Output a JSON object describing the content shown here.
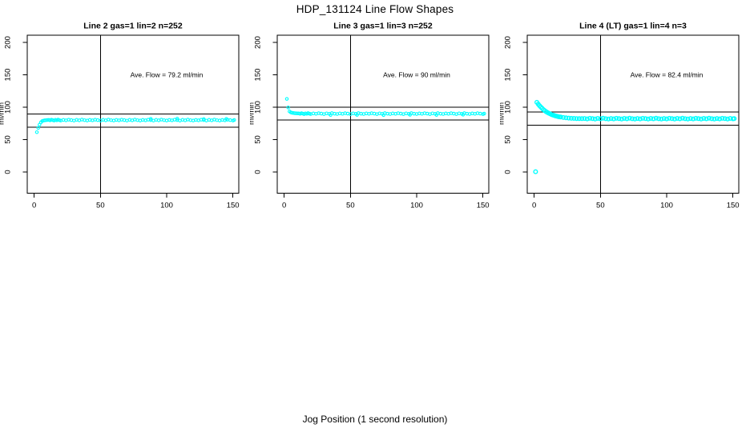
{
  "page": {
    "main_title": "HDP_131124  Line Flow Shapes",
    "x_axis_label": "Jog Position (1 second resolution)",
    "background_color": "#FFFFFF",
    "axis_color": "#000000",
    "point_color": "#00FFFF"
  },
  "chart_data": [
    {
      "type": "scatter",
      "title": "Line 2 gas=1 lin=2 n=252",
      "annotation": "Ave. Flow =  79.2  ml/min",
      "ave_flow_ml_min": 79.2,
      "n": 252,
      "ylabel": "ml/min",
      "xticks": [
        0,
        50,
        100,
        150
      ],
      "yticks": [
        0,
        50,
        100,
        150,
        200
      ],
      "xlim": [
        -5.3,
        155
      ],
      "ylim": [
        -33,
        211
      ],
      "grid": false,
      "vline_x": 50,
      "hlines": [
        89.2,
        69.2
      ],
      "marker_radius": 1.7,
      "marker_stroke": 1.1,
      "points": [
        [
          2,
          61.5
        ],
        [
          3,
          68
        ],
        [
          4,
          73
        ],
        [
          5,
          76.5
        ],
        [
          6,
          78.5
        ],
        [
          7,
          79.3
        ],
        [
          8,
          79.7
        ],
        [
          9,
          80
        ],
        [
          10,
          80.2
        ],
        [
          11,
          80.4
        ],
        [
          12,
          79.7
        ],
        [
          13,
          80.8
        ],
        [
          14,
          80.1
        ],
        [
          15,
          79.4
        ],
        [
          16,
          80.5
        ],
        [
          17,
          79.8
        ],
        [
          18,
          80.9
        ],
        [
          19,
          80
        ],
        [
          20,
          79.5
        ],
        [
          22,
          80.4
        ],
        [
          24,
          79.7
        ],
        [
          26,
          80.8
        ],
        [
          28,
          80.1
        ],
        [
          30,
          79.4
        ],
        [
          32,
          80.5
        ],
        [
          34,
          79.8
        ],
        [
          36,
          80.9
        ],
        [
          38,
          80
        ],
        [
          40,
          79.5
        ],
        [
          42,
          80.4
        ],
        [
          44,
          79.7
        ],
        [
          46,
          80.8
        ],
        [
          48,
          80.1
        ],
        [
          50,
          79.4
        ],
        [
          52,
          80.5
        ],
        [
          54,
          79.8
        ],
        [
          56,
          80.9
        ],
        [
          58,
          80
        ],
        [
          60,
          79.5
        ],
        [
          62,
          80.4
        ],
        [
          64,
          79.7
        ],
        [
          66,
          80.8
        ],
        [
          68,
          80.1
        ],
        [
          70,
          79.4
        ],
        [
          72,
          80.5
        ],
        [
          74,
          79.8
        ],
        [
          76,
          80.9
        ],
        [
          78,
          80
        ],
        [
          80,
          79.5
        ],
        [
          82,
          80.4
        ],
        [
          84,
          79.7
        ],
        [
          86,
          80.8
        ],
        [
          88,
          80.1
        ],
        [
          90,
          79.4
        ],
        [
          92,
          80.5
        ],
        [
          94,
          79.8
        ],
        [
          96,
          80.9
        ],
        [
          98,
          80
        ],
        [
          100,
          79.5
        ],
        [
          102,
          80.4
        ],
        [
          104,
          79.7
        ],
        [
          106,
          80.8
        ],
        [
          108,
          80.1
        ],
        [
          110,
          79.4
        ],
        [
          112,
          80.5
        ],
        [
          114,
          79.8
        ],
        [
          116,
          80.9
        ],
        [
          118,
          80
        ],
        [
          120,
          79.5
        ],
        [
          122,
          80.4
        ],
        [
          124,
          79.7
        ],
        [
          126,
          80.8
        ],
        [
          128,
          80.1
        ],
        [
          130,
          79.4
        ],
        [
          132,
          80.5
        ],
        [
          134,
          79.8
        ],
        [
          136,
          80.9
        ],
        [
          138,
          80
        ],
        [
          140,
          79.5
        ],
        [
          142,
          80.4
        ],
        [
          144,
          79.7
        ],
        [
          146,
          80.8
        ],
        [
          148,
          80.1
        ],
        [
          150,
          79.4
        ],
        [
          151,
          80.2
        ],
        [
          88,
          82.1
        ],
        [
          108,
          82.3
        ],
        [
          128,
          81.9
        ],
        [
          145,
          82
        ]
      ]
    },
    {
      "type": "scatter",
      "title": "Line 3 gas=1 lin=3 n=252",
      "annotation": "Ave. Flow =  90  ml/min",
      "ave_flow_ml_min": 90,
      "n": 252,
      "ylabel": "ml/min",
      "xticks": [
        0,
        50,
        100,
        150
      ],
      "yticks": [
        0,
        50,
        100,
        150,
        200
      ],
      "xlim": [
        -5.3,
        155
      ],
      "ylim": [
        -33,
        211
      ],
      "grid": false,
      "vline_x": 50,
      "hlines": [
        100,
        80
      ],
      "marker_radius": 1.7,
      "marker_stroke": 1.1,
      "points": [
        [
          2,
          112.8
        ],
        [
          3,
          99.5
        ],
        [
          4,
          93.5
        ],
        [
          5,
          92
        ],
        [
          6,
          91.3
        ],
        [
          7,
          91
        ],
        [
          8,
          90.8
        ],
        [
          9,
          90.6
        ],
        [
          10,
          90.5
        ],
        [
          11,
          90.4
        ],
        [
          12,
          89.7
        ],
        [
          13,
          90.8
        ],
        [
          14,
          90.1
        ],
        [
          15,
          89.4
        ],
        [
          16,
          90.5
        ],
        [
          17,
          89.8
        ],
        [
          18,
          90.9
        ],
        [
          19,
          90
        ],
        [
          20,
          89.5
        ],
        [
          22,
          90.4
        ],
        [
          24,
          89.7
        ],
        [
          26,
          90.8
        ],
        [
          28,
          90.1
        ],
        [
          30,
          89.4
        ],
        [
          32,
          90.5
        ],
        [
          34,
          89.8
        ],
        [
          36,
          90.9
        ],
        [
          38,
          90
        ],
        [
          40,
          89.5
        ],
        [
          42,
          90.4
        ],
        [
          44,
          89.7
        ],
        [
          46,
          90.8
        ],
        [
          48,
          90.1
        ],
        [
          50,
          89.4
        ],
        [
          52,
          90.5
        ],
        [
          54,
          89.8
        ],
        [
          56,
          90.9
        ],
        [
          58,
          90
        ],
        [
          60,
          89.5
        ],
        [
          62,
          90.4
        ],
        [
          64,
          89.7
        ],
        [
          66,
          90.8
        ],
        [
          68,
          90.1
        ],
        [
          70,
          89.4
        ],
        [
          72,
          90.5
        ],
        [
          74,
          89.8
        ],
        [
          76,
          90.9
        ],
        [
          78,
          90
        ],
        [
          80,
          89.5
        ],
        [
          82,
          90.4
        ],
        [
          84,
          89.7
        ],
        [
          86,
          90.8
        ],
        [
          88,
          90.1
        ],
        [
          90,
          89.4
        ],
        [
          92,
          90.5
        ],
        [
          94,
          89.8
        ],
        [
          96,
          90.9
        ],
        [
          98,
          90
        ],
        [
          100,
          89.5
        ],
        [
          102,
          90.4
        ],
        [
          104,
          89.7
        ],
        [
          106,
          90.8
        ],
        [
          108,
          90.1
        ],
        [
          110,
          89.4
        ],
        [
          112,
          90.5
        ],
        [
          114,
          89.8
        ],
        [
          116,
          90.9
        ],
        [
          118,
          90
        ],
        [
          120,
          89.5
        ],
        [
          122,
          90.4
        ],
        [
          124,
          89.7
        ],
        [
          126,
          90.8
        ],
        [
          128,
          90.1
        ],
        [
          130,
          89.4
        ],
        [
          132,
          90.5
        ],
        [
          134,
          89.8
        ],
        [
          136,
          90.9
        ],
        [
          138,
          90
        ],
        [
          140,
          89.5
        ],
        [
          142,
          90.4
        ],
        [
          144,
          89.7
        ],
        [
          146,
          90.8
        ],
        [
          148,
          90.1
        ],
        [
          150,
          89.4
        ],
        [
          151,
          90.1
        ],
        [
          35,
          87.9
        ],
        [
          55,
          88.2
        ],
        [
          75,
          87.8
        ],
        [
          95,
          88.3
        ],
        [
          115,
          88
        ],
        [
          135,
          88.4
        ]
      ]
    },
    {
      "type": "scatter",
      "title": "Line 4 (LT) gas=1 lin=4 n=3",
      "annotation": "Ave. Flow =  82.4  ml/min",
      "ave_flow_ml_min": 82.4,
      "n": 3,
      "ylabel": "ml/min",
      "xticks": [
        0,
        50,
        100,
        150
      ],
      "yticks": [
        0,
        50,
        100,
        150,
        200
      ],
      "xlim": [
        -5.3,
        155
      ],
      "ylim": [
        -33,
        211
      ],
      "grid": false,
      "vline_x": 50,
      "hlines": [
        92.4,
        72.4
      ],
      "marker_radius": 2.3,
      "marker_stroke": 1.4,
      "points": [
        [
          1,
          0.5
        ],
        [
          2,
          107.5
        ],
        [
          3,
          104.8
        ],
        [
          4,
          102.4
        ],
        [
          5,
          100.1
        ],
        [
          6,
          98.1
        ],
        [
          7,
          96.2
        ],
        [
          8,
          94.6
        ],
        [
          9,
          93.1
        ],
        [
          10,
          91.8
        ],
        [
          11,
          90.7
        ],
        [
          12,
          89.7
        ],
        [
          13,
          88.8
        ],
        [
          14,
          88
        ],
        [
          15,
          87.3
        ],
        [
          16,
          86.6
        ],
        [
          17,
          86.1
        ],
        [
          18,
          85.6
        ],
        [
          19,
          85.1
        ],
        [
          20,
          84.8
        ],
        [
          22,
          84.1
        ],
        [
          24,
          83.6
        ],
        [
          26,
          83.2
        ],
        [
          28,
          82.9
        ],
        [
          30,
          82.7
        ],
        [
          32,
          82.5
        ],
        [
          34,
          82.4
        ],
        [
          36,
          82.3
        ],
        [
          38,
          82.6
        ],
        [
          40,
          82
        ],
        [
          42,
          82.9
        ],
        [
          44,
          82.3
        ],
        [
          46,
          81.8
        ],
        [
          48,
          82.7
        ],
        [
          50,
          82.1
        ],
        [
          52,
          83
        ],
        [
          54,
          82.2
        ],
        [
          56,
          81.9
        ],
        [
          58,
          82.6
        ],
        [
          60,
          82
        ],
        [
          62,
          82.9
        ],
        [
          64,
          82.3
        ],
        [
          66,
          81.8
        ],
        [
          68,
          82.7
        ],
        [
          70,
          82.1
        ],
        [
          72,
          83
        ],
        [
          74,
          82.2
        ],
        [
          76,
          81.9
        ],
        [
          78,
          82.6
        ],
        [
          80,
          82
        ],
        [
          82,
          82.9
        ],
        [
          84,
          82.3
        ],
        [
          86,
          81.8
        ],
        [
          88,
          82.7
        ],
        [
          90,
          82.1
        ],
        [
          92,
          83
        ],
        [
          94,
          82.2
        ],
        [
          96,
          81.9
        ],
        [
          98,
          82.6
        ],
        [
          100,
          82
        ],
        [
          102,
          82.9
        ],
        [
          104,
          82.3
        ],
        [
          106,
          81.8
        ],
        [
          108,
          82.7
        ],
        [
          110,
          82.1
        ],
        [
          112,
          83
        ],
        [
          114,
          82.2
        ],
        [
          116,
          81.9
        ],
        [
          118,
          82.6
        ],
        [
          120,
          82
        ],
        [
          122,
          82.9
        ],
        [
          124,
          82.3
        ],
        [
          126,
          81.8
        ],
        [
          128,
          82.7
        ],
        [
          130,
          82.1
        ],
        [
          132,
          83
        ],
        [
          134,
          82.2
        ],
        [
          136,
          81.9
        ],
        [
          138,
          82.6
        ],
        [
          140,
          82
        ],
        [
          142,
          82.9
        ],
        [
          144,
          82.3
        ],
        [
          146,
          81.8
        ],
        [
          148,
          82.7
        ],
        [
          150,
          82.1
        ],
        [
          151,
          82.4
        ]
      ]
    }
  ]
}
